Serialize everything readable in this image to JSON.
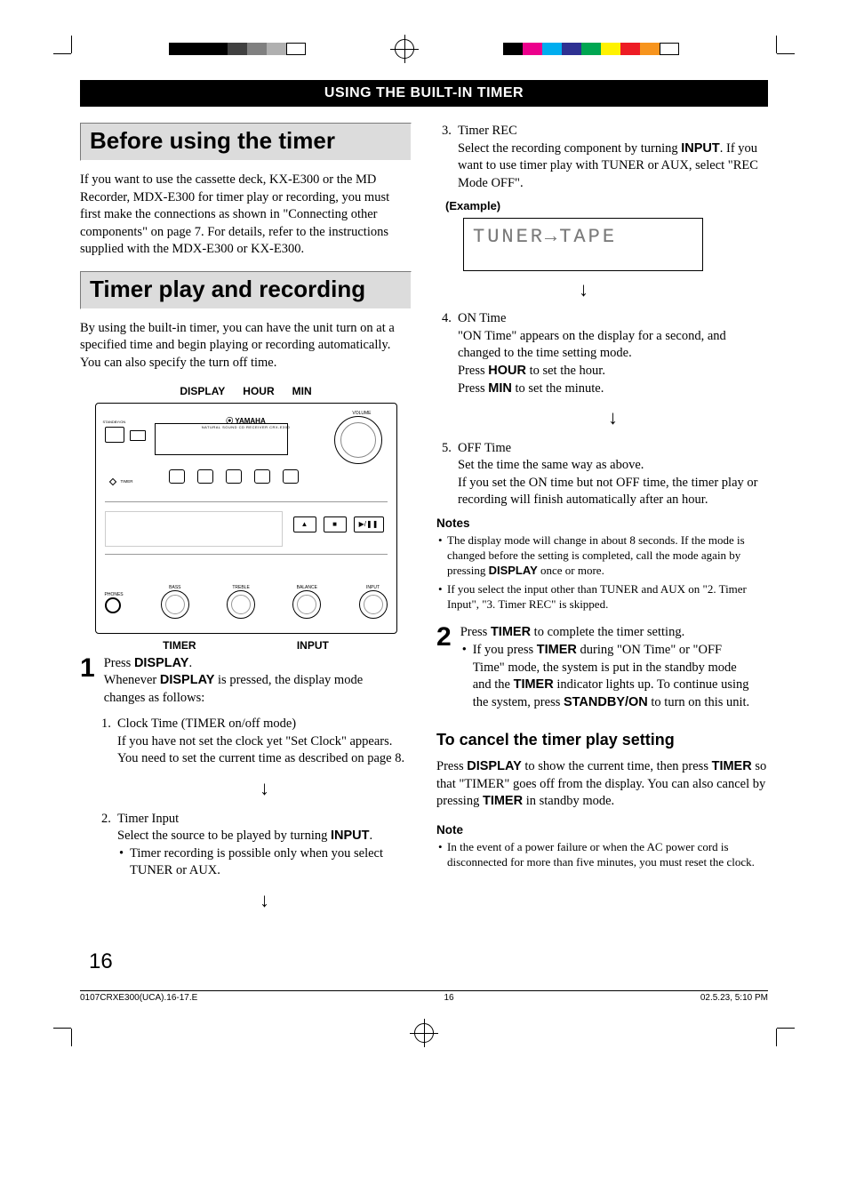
{
  "print": {
    "left_swatches": [
      "#000000",
      "#000000",
      "#000000",
      "#404040",
      "#808080",
      "#b0b0b0",
      "#ffffff"
    ],
    "right_swatches": [
      "#000000",
      "#ec008c",
      "#00adef",
      "#2e3192",
      "#00a651",
      "#fff200",
      "#ed1c24",
      "#f7941d",
      "#ffffff"
    ]
  },
  "section_bar": "USING THE BUILT-IN TIMER",
  "h1_a": "Before using the timer",
  "p_a": "If you want to use the cassette deck, KX-E300 or the MD Recorder, MDX-E300 for timer play or recording, you must first make the connections as shown in \"Connecting other components\" on page 7. For details, refer to the instructions supplied with the MDX-E300 or KX-E300.",
  "h1_b": "Timer play and recording",
  "p_b": "By using the built-in timer, you can have the unit turn on at a specified time and begin playing or recording automatically. You can also specify the turn off time.",
  "diagram": {
    "top_labels": [
      "DISPLAY",
      "HOUR",
      "MIN"
    ],
    "brand": "YAMAHA",
    "tagline": "NATURAL SOUND CD RECEIVER CRX-E300",
    "volume_lbl": "VOLUME",
    "standby_lbl": "STANDBY/ON",
    "timer_lbl": "TIMER",
    "row2_tiny": [
      "DISPLAY",
      "MAN'L/ MEMORY",
      "TIME AUTO/MAN'L",
      "PERFORM",
      "PRESET/BAND"
    ],
    "mid_btns": [
      "▲",
      "■",
      "▶/❚❚"
    ],
    "knob_lbls": [
      "PHONES",
      "BASS",
      "TREBLE",
      "BALANCE",
      "INPUT"
    ],
    "bottom_labels": [
      "TIMER",
      "INPUT"
    ]
  },
  "step1_num": "1",
  "step1_a": "Press ",
  "step1_a_bold": "DISPLAY",
  "step1_a2": ".",
  "step1_b1": "Whenever ",
  "step1_b_bold": "DISPLAY",
  "step1_b2": " is pressed, the display mode changes as follows:",
  "li1_num": "1.",
  "li1_t": "Clock Time (TIMER on/off mode)",
  "li1_body": "If you have not set the clock yet \"Set Clock\" appears. You need to set the current time as described on page 8.",
  "li2_num": "2.",
  "li2_t": "Timer Input",
  "li2_body_a": "Select the source to be played by turning ",
  "li2_body_bold": "INPUT",
  "li2_body_b": ".",
  "li2_bullet": "Timer recording is possible only when you select TUNER or AUX.",
  "li3_num": "3.",
  "li3_t": "Timer REC",
  "li3_body_a": "Select the recording component by turning ",
  "li3_body_bold": "INPUT",
  "li3_body_b": ". If you want to use timer play with TUNER or AUX, select \"REC Mode OFF\".",
  "example_lbl": "(Example)",
  "lcd": "TUNER→TAPE",
  "li4_num": "4.",
  "li4_t": "ON Time",
  "li4_l1": "\"ON Time\" appears on the display for a second, and changed to the time setting mode.",
  "li4_l2a": "Press ",
  "li4_l2b": "HOUR",
  "li4_l2c": " to set the hour.",
  "li4_l3a": "Press ",
  "li4_l3b": "MIN",
  "li4_l3c": " to set the minute.",
  "li5_num": "5.",
  "li5_t": "OFF Time",
  "li5_l1": "Set the time the same way as above.",
  "li5_l2": "If you set the ON time but not OFF time, the timer play or recording will finish automatically after an hour.",
  "notes_h": "Notes",
  "note_a1": "The display mode will change in about 8 seconds. If the mode is changed before the setting is completed, call the mode again by pressing ",
  "note_a_bold": "DISPLAY",
  "note_a2": " once or more.",
  "note_b": "If you select the input other than TUNER and AUX on \"2. Timer Input\", \"3. Timer REC\" is skipped.",
  "step2_num": "2",
  "step2_a": "Press ",
  "step2_a_b": "TIMER",
  "step2_a2": " to complete the timer setting.",
  "step2_bul_a": "If you press ",
  "step2_bul_b": "TIMER",
  "step2_bul_c": " during \"ON Time\" or \"OFF Time\" mode, the system is put in the standby mode and the ",
  "step2_bul_d": "TIMER",
  "step2_bul_e": " indicator lights up. To continue using the system, press ",
  "step2_bul_f": "STANDBY/ON",
  "step2_bul_g": " to turn on this unit.",
  "sub_h": "To cancel the timer play setting",
  "cancel_a": "Press ",
  "cancel_b": "DISPLAY",
  "cancel_c": " to show the current time, then press ",
  "cancel_d": "TIMER",
  "cancel_e": " so that \"TIMER\" goes off from the display. You can also cancel by pressing ",
  "cancel_f": "TIMER",
  "cancel_g": " in standby mode.",
  "note2_h": "Note",
  "note2": "In the event of a power failure or when the AC power cord is disconnected for more than five minutes, you must reset the clock.",
  "page_num": "16",
  "footer_left": "0107CRXE300(UCA).16-17.E",
  "footer_mid": "16",
  "footer_right": "02.5.23, 5:10 PM",
  "colors": {
    "section_bg": "#000000",
    "section_fg": "#ffffff",
    "heading_bg": "#dcdcdc",
    "body_text": "#000000",
    "lcd_text": "#7a7a7a"
  }
}
